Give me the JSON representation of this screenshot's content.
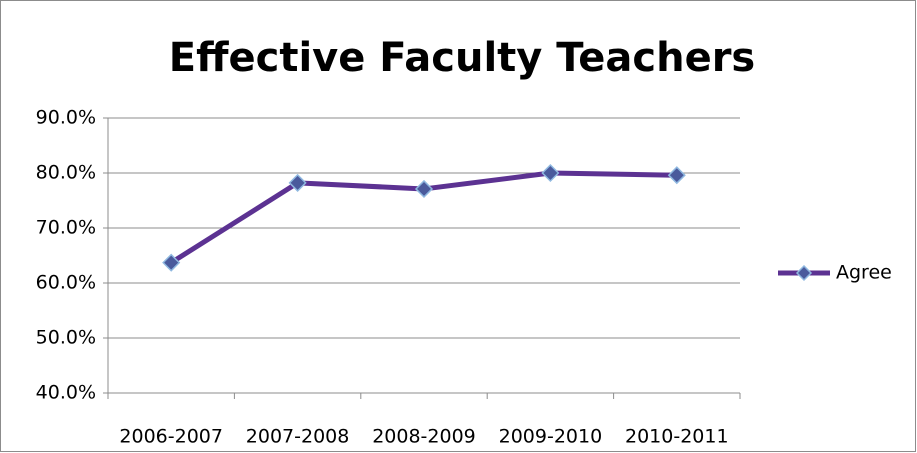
{
  "chart_data": {
    "type": "line",
    "title": "Effective Faculty Teachers",
    "categories": [
      "2006-2007",
      "2007-2008",
      "2008-2009",
      "2009-2010",
      "2010-2011"
    ],
    "series": [
      {
        "name": "Agree",
        "color": "#5c3292",
        "marker_color": "#4a5a9c",
        "values": [
          63.7,
          78.2,
          77.1,
          80.0,
          79.6
        ]
      }
    ],
    "ylim": [
      40,
      90
    ],
    "yticks": [
      {
        "value": 40,
        "label": "40.0%"
      },
      {
        "value": 50,
        "label": "50.0%"
      },
      {
        "value": 60,
        "label": "60.0%"
      },
      {
        "value": 70,
        "label": "70.0%"
      },
      {
        "value": 80,
        "label": "80.0%"
      },
      {
        "value": 90,
        "label": "90.0%"
      }
    ],
    "grid": true,
    "legend": "right"
  }
}
